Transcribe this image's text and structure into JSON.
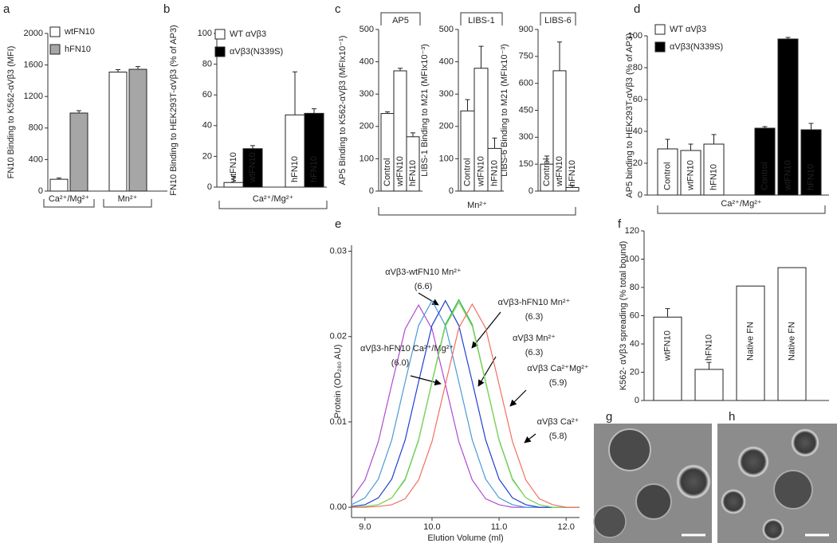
{
  "chart_data": [
    {
      "type": "bar",
      "panel": "a",
      "y_label": "FN10 Binding to K562-αVβ3 (MFI)",
      "categories": [
        "Ca²⁺/Mg²⁺",
        "Mn²⁺"
      ],
      "series": [
        {
          "name": "wtFN10",
          "color": "#ffffff",
          "values": [
            150,
            1510
          ],
          "errors": [
            15,
            30
          ]
        },
        {
          "name": "hFN10",
          "color": "#a6a6a6",
          "values": [
            990,
            1545
          ],
          "errors": [
            30,
            35
          ]
        }
      ],
      "ylim": [
        0,
        2000
      ],
      "yticks": [
        0,
        400,
        800,
        1200,
        1600,
        2000
      ]
    },
    {
      "type": "bar",
      "panel": "b",
      "y_label": "FN10 Binding to HEK293T-αVβ3 (% of AP3)",
      "categories": [
        "wtFN10",
        "hFN10"
      ],
      "group_label": "Ca²⁺/Mg²⁺",
      "series": [
        {
          "name": "WT αVβ3",
          "color": "#ffffff",
          "values": [
            3,
            47
          ],
          "errors": [
            4,
            28
          ]
        },
        {
          "name": "αVβ3(N339S)",
          "color": "#000000",
          "values": [
            25,
            48
          ],
          "errors": [
            2,
            3
          ]
        }
      ],
      "ylim": [
        0,
        100
      ],
      "yticks": [
        0,
        20,
        40,
        60,
        80,
        100
      ]
    },
    {
      "type": "bar",
      "panel": "c",
      "title": "AP5",
      "y_label": "AP5 Binding to K562-αVβ3 (MFIx10⁻¹)",
      "categories": [
        "Control",
        "wtFN10",
        "hFN10"
      ],
      "group_label": "Mn²⁺",
      "series": [
        {
          "color": "#ffffff",
          "values": [
            240,
            372,
            168
          ],
          "errors": [
            5,
            8,
            12
          ]
        }
      ],
      "ylim": [
        0,
        500
      ],
      "yticks": [
        0,
        100,
        200,
        300,
        400,
        500
      ]
    },
    {
      "type": "bar",
      "title": "LIBS-1",
      "y_label": "LIBS-1 Binding to M21 (MFIx10⁻³)",
      "categories": [
        "Control",
        "wtFN10",
        "hFN10"
      ],
      "series": [
        {
          "color": "#ffffff",
          "values": [
            248,
            380,
            132
          ],
          "errors": [
            35,
            68,
            32
          ]
        }
      ],
      "ylim": [
        0,
        500
      ],
      "yticks": [
        0,
        100,
        200,
        300,
        400,
        500
      ]
    },
    {
      "type": "bar",
      "title": "LIBS-6",
      "y_label": "LIBS-6 Binding to M21 (MFIx10⁻³)",
      "categories": [
        "Control",
        "wtFN10",
        "hFN10"
      ],
      "series": [
        {
          "color": "#ffffff",
          "values": [
            150,
            670,
            20
          ],
          "errors": [
            45,
            160,
            10
          ]
        }
      ],
      "ylim": [
        0,
        900
      ],
      "yticks": [
        0,
        150,
        300,
        450,
        600,
        750,
        900
      ]
    },
    {
      "type": "bar",
      "panel": "d",
      "y_label": "AP5 binding to HEK293T-αVβ3 (% of AP3)",
      "categories": [
        "Control",
        "wtFN10",
        "hFN10"
      ],
      "group_label": "Ca²⁺/Mg²⁺",
      "series": [
        {
          "name": "WT αVβ3",
          "color": "#ffffff",
          "values": [
            29,
            28,
            32
          ],
          "errors": [
            6,
            4,
            6
          ]
        },
        {
          "name": "αVβ3(N339S)",
          "color": "#000000",
          "values": [
            42,
            98,
            41
          ],
          "errors": [
            1,
            1,
            4
          ]
        }
      ],
      "ylim": [
        0,
        100
      ],
      "yticks": [
        0,
        20,
        40,
        60,
        80,
        100
      ]
    },
    {
      "type": "line",
      "panel": "e",
      "y_label": "Protein (OD₂₈₀ AU)",
      "x_label": "Elution Volume (ml)",
      "x": [
        8.8,
        9.0,
        9.2,
        9.4,
        9.6,
        9.8,
        10.0,
        10.2,
        10.4,
        10.6,
        10.8,
        11.0,
        11.2,
        11.4,
        11.6,
        11.8,
        12.0,
        12.2
      ],
      "series": [
        {
          "name": "αVβ3-wtFN10 Mn²⁺",
          "annotation": "(6.6)",
          "color": "#b04ad0",
          "label_color": "#6a1f6a",
          "values": [
            0.001,
            0.0032,
            0.0077,
            0.0144,
            0.0209,
            0.0237,
            0.0209,
            0.0144,
            0.0077,
            0.0032,
            0.001,
            0.0003,
            0,
            0,
            0,
            0,
            0,
            0
          ]
        },
        {
          "name": "αVβ3-hFN10 Mn²⁺",
          "annotation": "(6.3)",
          "color": "#4a9ad8",
          "label_color": "#3a7ab8",
          "values": [
            0.0003,
            0.0011,
            0.0033,
            0.0079,
            0.0147,
            0.0213,
            0.0242,
            0.0213,
            0.0147,
            0.0079,
            0.0033,
            0.0011,
            0.0003,
            0,
            0,
            0,
            0,
            0
          ]
        },
        {
          "name": "αVβ3 Mn²⁺",
          "annotation": "(6.3)",
          "color": "#2040d0",
          "label_color": "#2020c8",
          "values": [
            0.0001,
            0.0003,
            0.0011,
            0.0033,
            0.0079,
            0.0147,
            0.0213,
            0.0242,
            0.0213,
            0.0147,
            0.0079,
            0.0033,
            0.0011,
            0.0003,
            0,
            0,
            0,
            0
          ]
        },
        {
          "name": "αVβ3-hFN10 Ca²⁺/Mg²⁺",
          "annotation": "(6.0)",
          "color": "#22b048",
          "label_color": "#2ea44f",
          "values": [
            0,
            0.0001,
            0.0003,
            0.0011,
            0.0033,
            0.0079,
            0.0147,
            0.0214,
            0.0243,
            0.0214,
            0.0147,
            0.0079,
            0.0033,
            0.0011,
            0.0003,
            0,
            0,
            0
          ]
        },
        {
          "name": "αVβ3 Ca²⁺Mg²⁺",
          "annotation": "(5.9)",
          "color": "#8cd860",
          "label_color": "#9a8a10",
          "values": [
            0,
            0.0001,
            0.0003,
            0.0011,
            0.0032,
            0.0078,
            0.0146,
            0.0212,
            0.024,
            0.0212,
            0.0146,
            0.0078,
            0.0032,
            0.0011,
            0.0003,
            0,
            0,
            0
          ]
        },
        {
          "name": "αVβ3 Ca²⁺",
          "annotation": "(5.8)",
          "color": "#f07060",
          "label_color": "#e8601c",
          "values": [
            0,
            0,
            0.0001,
            0.0003,
            0.001,
            0.0032,
            0.0077,
            0.0144,
            0.021,
            0.0238,
            0.021,
            0.0144,
            0.0077,
            0.0032,
            0.001,
            0.0003,
            0,
            0
          ]
        }
      ],
      "xlim": [
        8.8,
        12.2
      ],
      "xticks": [
        {
          "value": 9,
          "label": "9.0"
        },
        {
          "value": 10,
          "label": "10.0"
        },
        {
          "value": 11,
          "label": "11.0"
        },
        {
          "value": 12,
          "label": "12.0"
        }
      ],
      "ylim": [
        -0.0012,
        0.0307
      ],
      "yticks": [
        {
          "value": 0,
          "label": "0.00"
        },
        {
          "value": 0.01,
          "label": "0.01"
        },
        {
          "value": 0.02,
          "label": "0.02"
        },
        {
          "value": 0.03,
          "label": "0.03"
        }
      ]
    },
    {
      "type": "bar",
      "panel": "f",
      "y_label": "K562- αVβ3 spreading (% total bound)",
      "categories": [
        "wtFN10",
        "hFN10",
        "Native FN",
        "Native FN"
      ],
      "series": [
        {
          "color": "#ffffff",
          "values": [
            59,
            22,
            81,
            94
          ],
          "errors": [
            6,
            5,
            null,
            null
          ]
        }
      ],
      "ylim": [
        0,
        120
      ],
      "yticks": [
        0,
        20,
        40,
        60,
        80,
        100,
        120
      ]
    }
  ],
  "images": [
    {
      "panel": "g"
    },
    {
      "panel": "h"
    }
  ]
}
